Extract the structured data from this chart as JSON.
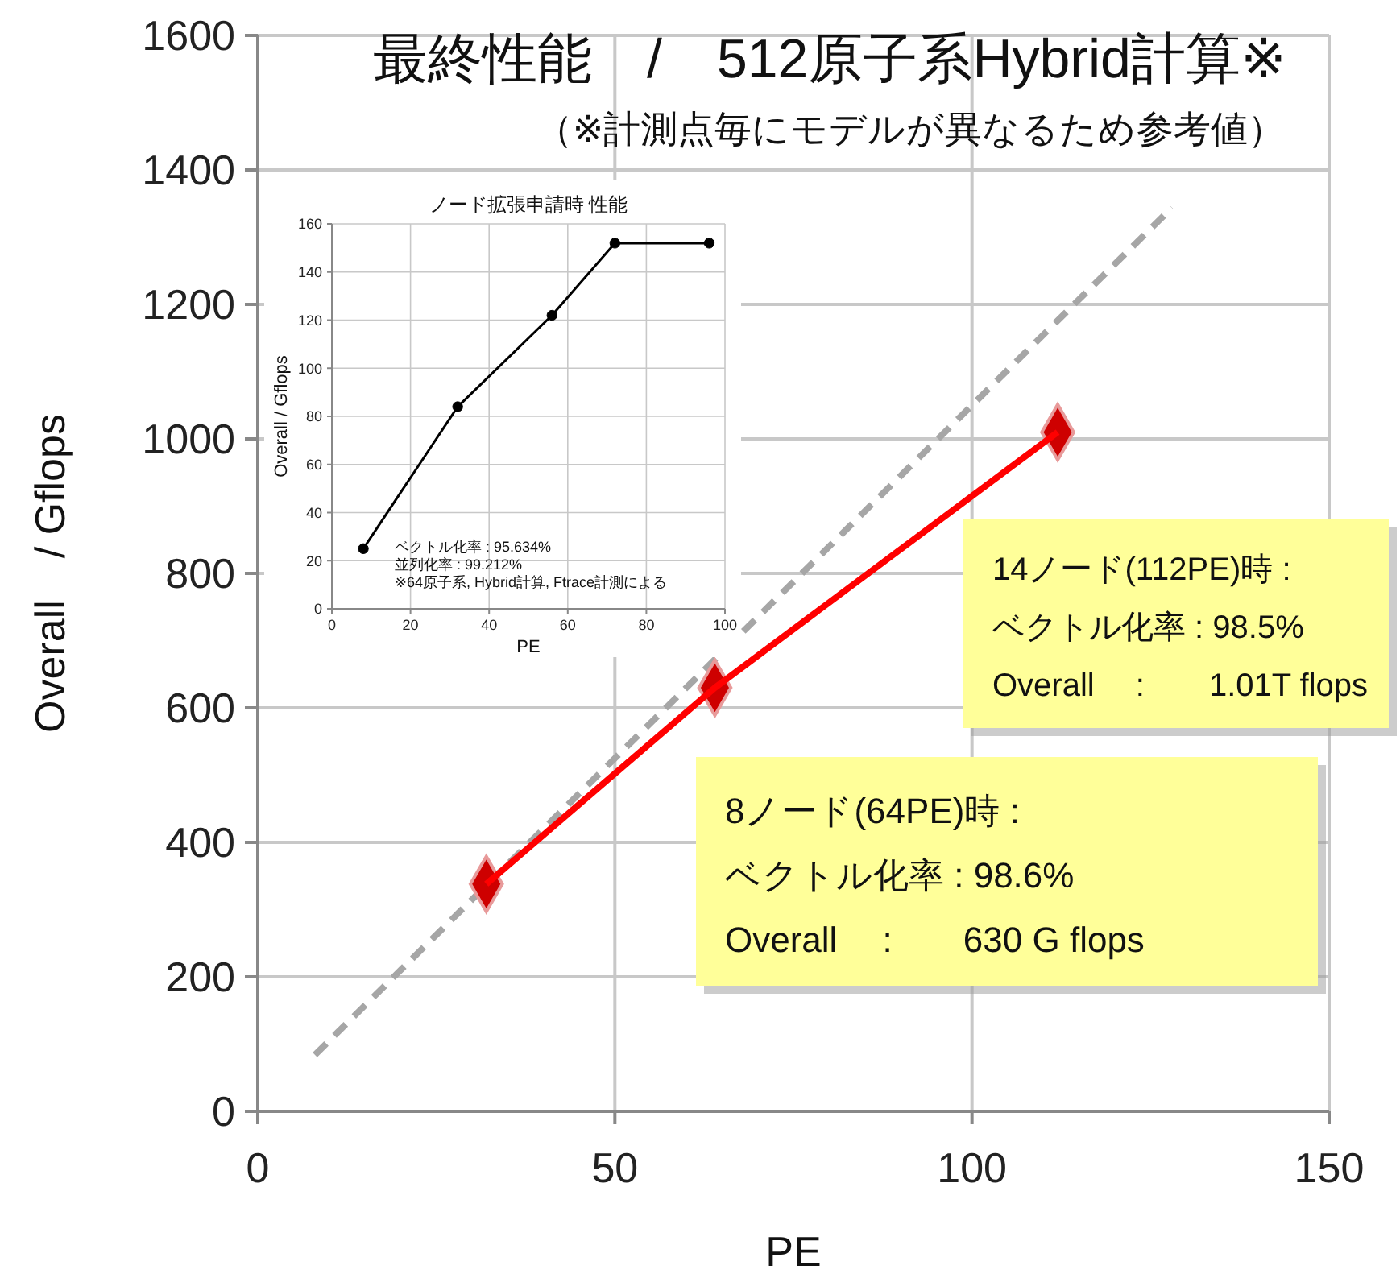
{
  "chart_data": [
    {
      "type": "line",
      "title": "最終性能　/　512原子系Hybrid計算※",
      "subtitle": "（※計測点毎にモデルが異なるため参考値）",
      "xlabel": "PE",
      "ylabel": "Overall　/ Gflops",
      "xlim": [
        0,
        150
      ],
      "ylim": [
        0,
        1600
      ],
      "xticks": [
        0,
        50,
        100,
        150
      ],
      "yticks": [
        0,
        200,
        400,
        600,
        800,
        1000,
        1200,
        1400,
        1600
      ],
      "grid": true,
      "series": [
        {
          "x": [
            8,
            128
          ],
          "values": [
            84,
            1344
          ],
          "color": "#a6a6a6",
          "line_style": "dashed",
          "marker": "none"
        },
        {
          "x": [
            32,
            64,
            112
          ],
          "values": [
            338,
            630,
            1010
          ],
          "color": "#ff0000",
          "line_style": "solid",
          "marker": "diamond"
        }
      ],
      "annotations": [
        "14ノード(112PE)時 :\nベクトル化率 : 98.5%\nOverall　 :　　1.01T flops",
        "8ノード(64PE)時 :\nベクトル化率 : 98.6%\nOverall　 :　　630 G flops"
      ]
    },
    {
      "type": "line",
      "title": "ノード拡張申請時 性能",
      "xlabel": "PE",
      "ylabel": "Overall / Gflops",
      "xlim": [
        0,
        100
      ],
      "ylim": [
        0,
        160
      ],
      "xticks": [
        0,
        20,
        40,
        60,
        80,
        100
      ],
      "yticks": [
        0,
        20,
        40,
        60,
        80,
        100,
        120,
        140,
        160
      ],
      "grid": true,
      "series": [
        {
          "x": [
            8,
            32,
            56,
            72,
            96
          ],
          "values": [
            25,
            84,
            122,
            152,
            152
          ],
          "color": "#000000",
          "line_style": "solid",
          "marker": "circle"
        }
      ],
      "annotations": [
        "ベクトル化率 : 95.634%\n並列化率 : 99.212%\n※64原子系, Hybrid計算, Ftrace計測による"
      ]
    }
  ]
}
